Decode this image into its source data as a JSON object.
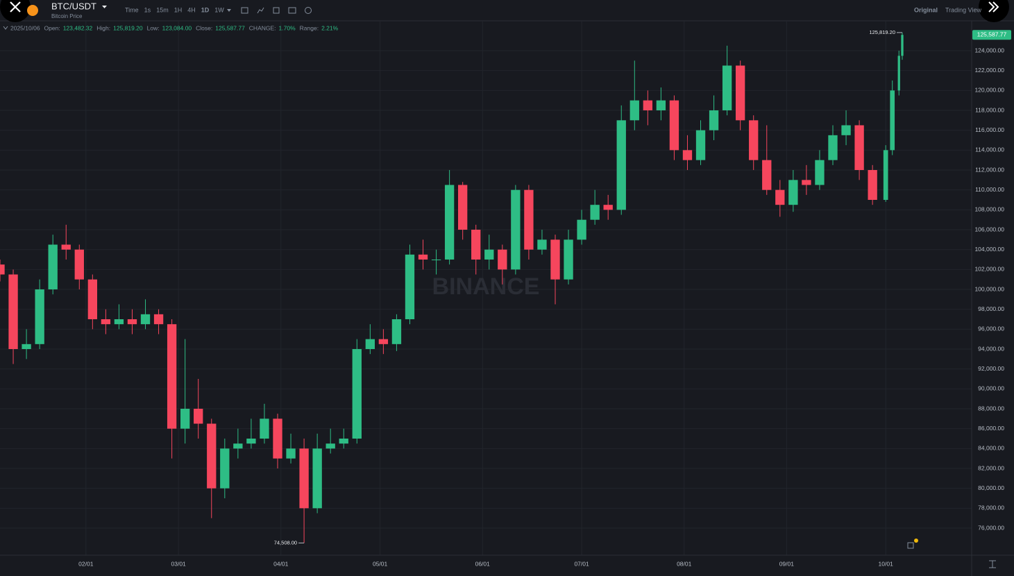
{
  "ui": {
    "symbol": "BTC/USDT",
    "subtitle": "Bitcoin Price",
    "intervals": [
      "Time",
      "1s",
      "15m",
      "1H",
      "4H",
      "1D",
      "1W"
    ],
    "views": [
      "Original",
      "Trading View"
    ],
    "legend": {
      "date": "2025/10/06",
      "items": [
        {
          "label": "Open:",
          "value": "123,482.32"
        },
        {
          "label": "High:",
          "value": "125,819.20"
        },
        {
          "label": "Low:",
          "value": "123,084.00"
        },
        {
          "label": "Close:",
          "value": "125,587.77"
        },
        {
          "label": "CHANGE:",
          "value": "1.70%"
        },
        {
          "label": "Range:",
          "value": "2.21%"
        }
      ]
    }
  },
  "chart_data": {
    "type": "candlestick",
    "watermark": "BINANCE",
    "grid": true,
    "colors": {
      "up": "#2ebd85",
      "down": "#f6465d"
    },
    "x": [
      0,
      4,
      8,
      12,
      16,
      20,
      24,
      28,
      32,
      36,
      40,
      44,
      48,
      52,
      56,
      60,
      64,
      68,
      72,
      76,
      80,
      84,
      88,
      92,
      96,
      100,
      104,
      108,
      112,
      116,
      120,
      124,
      128,
      132,
      136,
      140,
      144,
      148,
      152,
      156,
      160,
      164,
      168,
      172,
      176,
      180,
      184,
      188,
      192,
      196,
      200,
      204,
      208,
      212,
      216,
      220,
      224,
      228,
      232,
      236,
      240,
      244,
      248,
      252,
      256,
      260,
      264,
      268,
      270,
      272,
      273
    ],
    "open": [
      102500,
      101500,
      94000,
      94500,
      100000,
      104500,
      104000,
      101000,
      97000,
      96500,
      97000,
      96500,
      97500,
      96500,
      86000,
      88000,
      86500,
      80000,
      84000,
      84500,
      85000,
      87000,
      83000,
      84000,
      78000,
      84000,
      84500,
      85000,
      94000,
      95000,
      94500,
      97000,
      103500,
      103000,
      103000,
      110500,
      106000,
      103000,
      104000,
      102000,
      110000,
      104000,
      105000,
      101000,
      105000,
      107000,
      108500,
      108000,
      117000,
      119000,
      118000,
      119000,
      114000,
      113000,
      116000,
      118000,
      122500,
      117000,
      113000,
      110000,
      108500,
      111000,
      110500,
      113000,
      115500,
      116500,
      112000,
      109000,
      114000,
      120000,
      123482.32
    ],
    "high": [
      103000,
      102000,
      96000,
      101000,
      105500,
      106500,
      104500,
      101500,
      98000,
      98500,
      98000,
      99000,
      98000,
      97000,
      95000,
      91000,
      87000,
      85000,
      86000,
      87000,
      88500,
      87500,
      85500,
      85000,
      85500,
      86000,
      86000,
      95000,
      96500,
      96000,
      97500,
      104500,
      105000,
      104000,
      112000,
      110800,
      106500,
      105500,
      104500,
      110500,
      110500,
      106000,
      105500,
      106000,
      108000,
      110000,
      109500,
      118500,
      123000,
      120000,
      120300,
      119500,
      115500,
      117000,
      119500,
      124500,
      123000,
      117500,
      116500,
      111000,
      112000,
      112500,
      114000,
      116500,
      118000,
      117000,
      112500,
      114500,
      121000,
      124000,
      125819.2
    ],
    "low": [
      100800,
      92500,
      93000,
      94000,
      99500,
      103000,
      100000,
      96000,
      95500,
      96000,
      95500,
      96000,
      95500,
      83000,
      84500,
      85000,
      77000,
      79000,
      83000,
      84000,
      84500,
      82000,
      82500,
      74508,
      77500,
      83500,
      84000,
      84500,
      93500,
      93500,
      93800,
      96500,
      102000,
      101500,
      102500,
      105000,
      101500,
      102000,
      100500,
      101500,
      103000,
      103500,
      98500,
      100500,
      104500,
      106500,
      107000,
      107500,
      116000,
      116500,
      117000,
      113000,
      112000,
      112500,
      115000,
      117500,
      116000,
      112000,
      109500,
      107300,
      107800,
      109500,
      110000,
      112500,
      114500,
      111000,
      108500,
      108800,
      113500,
      119500,
      123084
    ],
    "close": [
      101500,
      94000,
      94500,
      100000,
      104500,
      104000,
      101000,
      97000,
      96500,
      97000,
      96500,
      97500,
      96500,
      86000,
      88000,
      86500,
      80000,
      84000,
      84500,
      85000,
      87000,
      83000,
      84000,
      78000,
      84000,
      84500,
      85000,
      94000,
      95000,
      94500,
      97000,
      103500,
      103000,
      103000,
      110500,
      106000,
      103000,
      104000,
      102000,
      110000,
      104000,
      105000,
      101000,
      105000,
      107000,
      108500,
      108000,
      117000,
      119000,
      118000,
      119000,
      114000,
      113000,
      116000,
      118000,
      122500,
      117000,
      113000,
      110000,
      108500,
      111000,
      110500,
      113000,
      115500,
      116500,
      112000,
      109000,
      114000,
      120000,
      123482.32,
      125587.77
    ],
    "xlim": [
      0,
      294
    ],
    "xticks": [
      {
        "value": 26,
        "label": "02/01"
      },
      {
        "value": 54,
        "label": "03/01"
      },
      {
        "value": 85,
        "label": "04/01"
      },
      {
        "value": 115,
        "label": "05/01"
      },
      {
        "value": 146,
        "label": "06/01"
      },
      {
        "value": 176,
        "label": "07/01"
      },
      {
        "value": 207,
        "label": "08/01"
      },
      {
        "value": 238,
        "label": "09/01"
      },
      {
        "value": 268,
        "label": "10/01"
      }
    ],
    "ylim": [
      73280,
      127000
    ],
    "yticks": [
      {
        "value": 76000,
        "label": "76,000.00"
      },
      {
        "value": 78000,
        "label": "78,000.00"
      },
      {
        "value": 80000,
        "label": "80,000.00"
      },
      {
        "value": 82000,
        "label": "82,000.00"
      },
      {
        "value": 84000,
        "label": "84,000.00"
      },
      {
        "value": 86000,
        "label": "86,000.00"
      },
      {
        "value": 88000,
        "label": "88,000.00"
      },
      {
        "value": 90000,
        "label": "90,000.00"
      },
      {
        "value": 92000,
        "label": "92,000.00"
      },
      {
        "value": 94000,
        "label": "94,000.00"
      },
      {
        "value": 96000,
        "label": "96,000.00"
      },
      {
        "value": 98000,
        "label": "98,000.00"
      },
      {
        "value": 100000,
        "label": "100,000.00"
      },
      {
        "value": 102000,
        "label": "102,000.00"
      },
      {
        "value": 104000,
        "label": "104,000.00"
      },
      {
        "value": 106000,
        "label": "106,000.00"
      },
      {
        "value": 108000,
        "label": "108,000.00"
      },
      {
        "value": 110000,
        "label": "110,000.00"
      },
      {
        "value": 112000,
        "label": "112,000.00"
      },
      {
        "value": 114000,
        "label": "114,000.00"
      },
      {
        "value": 116000,
        "label": "116,000.00"
      },
      {
        "value": 118000,
        "label": "118,000.00"
      },
      {
        "value": 120000,
        "label": "120,000.00"
      },
      {
        "value": 122000,
        "label": "122,000.00"
      },
      {
        "value": 124000,
        "label": "124,000.00"
      }
    ],
    "extremes": [
      {
        "value": 125819.2,
        "label": "125,819.20"
      },
      {
        "value": 74508,
        "label": "74,508.00"
      }
    ],
    "last_price": {
      "value": 125587.77,
      "label": "125,587.77"
    }
  }
}
